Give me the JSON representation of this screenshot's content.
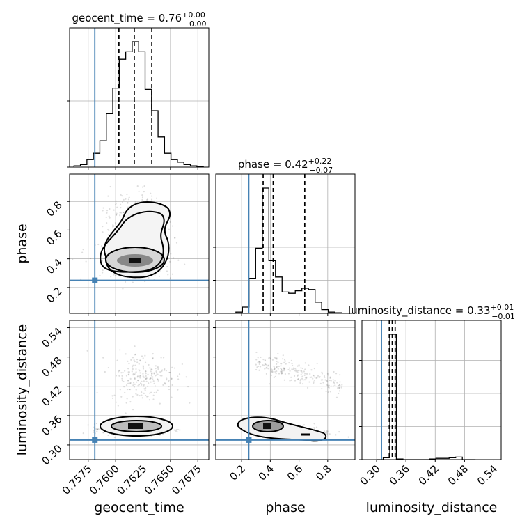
{
  "chart_data": {
    "type": "corner",
    "parameters": [
      {
        "name": "geocent_time",
        "title_base": "geocent_time = 0.76",
        "title_plus": "+0.00",
        "title_minus": "−0.00",
        "range": [
          0.7558,
          0.7685
        ],
        "ticks": [
          0.7575,
          0.76,
          0.7625,
          0.765,
          0.7675
        ],
        "tick_labels": [
          "0.7575",
          "0.7600",
          "0.7625",
          "0.7650",
          "0.7675"
        ],
        "truth": 0.7581,
        "quantiles": [
          0.7603,
          0.7617,
          0.7633
        ],
        "hist": {
          "edges_start": 0.7562,
          "bin_width": 0.00059,
          "counts": [
            0.01,
            0.02,
            0.06,
            0.11,
            0.21,
            0.43,
            0.63,
            0.86,
            0.92,
            1.0,
            0.92,
            0.62,
            0.45,
            0.24,
            0.11,
            0.06,
            0.04,
            0.02,
            0.01,
            0.005
          ]
        }
      },
      {
        "name": "phase",
        "title_base": "phase = 0.42",
        "title_plus": "+0.22",
        "title_minus": "−0.07",
        "range": [
          0.02,
          0.99
        ],
        "ticks": [
          0.2,
          0.4,
          0.6,
          0.8
        ],
        "tick_labels": [
          "0.2",
          "0.4",
          "0.6",
          "0.8"
        ],
        "truth": 0.25,
        "quantiles": [
          0.35,
          0.42,
          0.64
        ],
        "hist": {
          "edges_start": 0.16,
          "bin_width": 0.046,
          "counts": [
            0.01,
            0.05,
            0.28,
            0.52,
            1.0,
            0.42,
            0.29,
            0.17,
            0.16,
            0.18,
            0.2,
            0.19,
            0.09,
            0.03,
            0.01,
            0.005
          ]
        }
      },
      {
        "name": "luminosity_distance",
        "title_base": "luminosity_distance = 0.33",
        "title_plus": "+0.01",
        "title_minus": "−0.01",
        "range": [
          0.27,
          0.555
        ],
        "ticks": [
          0.3,
          0.36,
          0.42,
          0.48,
          0.54
        ],
        "tick_labels": [
          "0.30",
          "0.36",
          "0.42",
          "0.48",
          "0.54"
        ],
        "truth": 0.31,
        "quantiles": [
          0.326,
          0.332,
          0.338
        ],
        "hist": {
          "edges_start": 0.3,
          "bin_width": 0.0135,
          "counts": [
            0.0,
            0.015,
            1.0,
            0.005,
            0.0,
            0.0,
            0.0,
            0.0,
            0.005,
            0.01,
            0.01,
            0.015,
            0.02,
            0.0,
            0.0
          ]
        }
      }
    ],
    "axis_labels": [
      "geocent_time",
      "phase",
      "luminosity_distance"
    ],
    "truth_color": "#4682b4",
    "grid": true
  }
}
